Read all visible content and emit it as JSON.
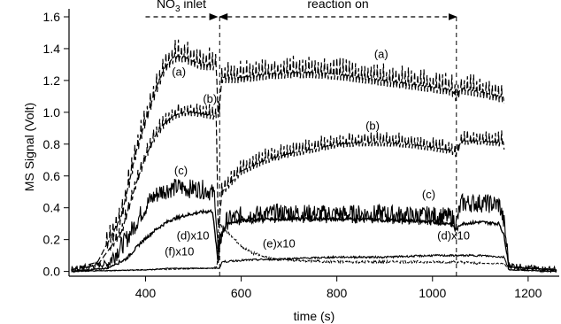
{
  "chart_data": {
    "type": "line",
    "xlabel": "time (s)",
    "ylabel": "MS Signal (Volt)",
    "xlim": [
      240,
      1265
    ],
    "ylim": [
      -0.03,
      1.65
    ],
    "x_ticks": [
      400,
      600,
      800,
      1000,
      1200
    ],
    "y_ticks": [
      0.0,
      0.2,
      0.4,
      0.6,
      0.8,
      1.0,
      1.2,
      1.4,
      1.6
    ],
    "grid": false,
    "annotations": [
      {
        "id": "no3-inlet",
        "text_main": "NO",
        "text_sub": "3",
        "text_rest": " inlet",
        "x_start": 400,
        "x_end": 550,
        "y": 1.6
      },
      {
        "id": "reaction-on",
        "text": "reaction on",
        "x_start": 555,
        "x_end": 1050,
        "y": 1.6
      }
    ],
    "vertical_lines": [
      {
        "x": 555,
        "style": "dashed"
      },
      {
        "x": 1050,
        "style": "dashed"
      }
    ],
    "series": [
      {
        "id": "a",
        "label": "(a)",
        "label_x": 455,
        "label_y": 1.23,
        "x": [
          245,
          300,
          350,
          380,
          400,
          420,
          440,
          460,
          480,
          500,
          520,
          540,
          548,
          552,
          560,
          600,
          650,
          700,
          750,
          800,
          850,
          900,
          950,
          1000,
          1040,
          1050,
          1060,
          1100,
          1140,
          1148,
          1150
        ],
        "y": [
          0.01,
          0.06,
          0.35,
          0.75,
          0.95,
          1.13,
          1.28,
          1.35,
          1.35,
          1.32,
          1.3,
          1.3,
          1.3,
          0.95,
          1.22,
          1.22,
          1.24,
          1.25,
          1.25,
          1.24,
          1.22,
          1.2,
          1.18,
          1.16,
          1.14,
          1.1,
          1.15,
          1.13,
          1.1,
          1.1,
          1.05
        ]
      },
      {
        "id": "b",
        "label": "(b)",
        "label_x": 520,
        "label_y": 1.06,
        "x": [
          245,
          300,
          350,
          380,
          400,
          420,
          440,
          460,
          480,
          500,
          520,
          540,
          548,
          552,
          560,
          600,
          650,
          700,
          750,
          800,
          850,
          900,
          950,
          1000,
          1040,
          1050,
          1060,
          1100,
          1140,
          1148,
          1150
        ],
        "y": [
          0.01,
          0.04,
          0.25,
          0.55,
          0.72,
          0.85,
          0.93,
          0.98,
          1.0,
          1.0,
          0.99,
          0.98,
          0.97,
          0.25,
          0.5,
          0.63,
          0.7,
          0.74,
          0.77,
          0.8,
          0.81,
          0.81,
          0.8,
          0.78,
          0.76,
          0.74,
          0.82,
          0.82,
          0.81,
          0.82,
          0.76
        ]
      },
      {
        "id": "c",
        "label": "(c)",
        "label_x": 460,
        "label_y": 0.61,
        "x": [
          245,
          320,
          360,
          390,
          410,
          430,
          450,
          470,
          490,
          510,
          530,
          545,
          552,
          556,
          570,
          600,
          650,
          700,
          750,
          800,
          850,
          900,
          950,
          1000,
          1040,
          1050,
          1060,
          1100,
          1140,
          1150,
          1160,
          1200,
          1260
        ],
        "y": [
          0.01,
          0.05,
          0.2,
          0.36,
          0.45,
          0.5,
          0.52,
          0.53,
          0.52,
          0.52,
          0.51,
          0.48,
          0.1,
          0.2,
          0.32,
          0.35,
          0.36,
          0.37,
          0.36,
          0.36,
          0.36,
          0.36,
          0.35,
          0.35,
          0.34,
          0.3,
          0.43,
          0.43,
          0.42,
          0.3,
          0.04,
          0.02,
          0.01
        ]
      },
      {
        "id": "d",
        "label": "(d)x10",
        "label_x": 465,
        "label_y": 0.2,
        "x": [
          245,
          320,
          360,
          390,
          420,
          450,
          480,
          510,
          540,
          552,
          556,
          570,
          600,
          650,
          700,
          750,
          800,
          850,
          900,
          950,
          1000,
          1040,
          1050,
          1060,
          1100,
          1140,
          1150,
          1160,
          1200,
          1260
        ],
        "y": [
          0.0,
          0.02,
          0.08,
          0.18,
          0.26,
          0.32,
          0.35,
          0.37,
          0.38,
          0.05,
          0.22,
          0.3,
          0.32,
          0.33,
          0.33,
          0.33,
          0.33,
          0.33,
          0.32,
          0.32,
          0.31,
          0.3,
          0.26,
          0.3,
          0.31,
          0.3,
          0.22,
          0.03,
          0.02,
          0.01
        ]
      },
      {
        "id": "e",
        "label": "(e)x10",
        "label_x": 645,
        "label_y": 0.15,
        "x": [
          245,
          400,
          540,
          550,
          553,
          560,
          580,
          600,
          620,
          640,
          660,
          700,
          800,
          900,
          1000,
          1050,
          1100,
          1150,
          1160,
          1260
        ],
        "y": [
          0.0,
          0.01,
          0.02,
          0.03,
          0.32,
          0.28,
          0.22,
          0.16,
          0.12,
          0.1,
          0.08,
          0.07,
          0.06,
          0.06,
          0.06,
          0.06,
          0.05,
          0.05,
          0.01,
          0.0
        ]
      },
      {
        "id": "f",
        "label": "(f)x10",
        "label_x": 440,
        "label_y": 0.1,
        "x": [
          245,
          400,
          450,
          500,
          550,
          555,
          560,
          600,
          700,
          800,
          900,
          1000,
          1050,
          1100,
          1150,
          1160,
          1260
        ],
        "y": [
          0.0,
          0.01,
          0.02,
          0.02,
          0.02,
          0.02,
          0.06,
          0.07,
          0.08,
          0.09,
          0.09,
          0.1,
          0.1,
          0.1,
          0.09,
          0.01,
          0.0
        ]
      }
    ],
    "extra_labels": [
      {
        "id": "d-right",
        "text": "(d)x10",
        "x": 1010,
        "y": 0.2
      },
      {
        "id": "a-right",
        "text": "(a)",
        "x": 878,
        "y": 1.34
      },
      {
        "id": "b-right",
        "text": "(b)",
        "x": 860,
        "y": 0.89
      },
      {
        "id": "c-right",
        "text": "(c)",
        "x": 978,
        "y": 0.46
      }
    ]
  }
}
